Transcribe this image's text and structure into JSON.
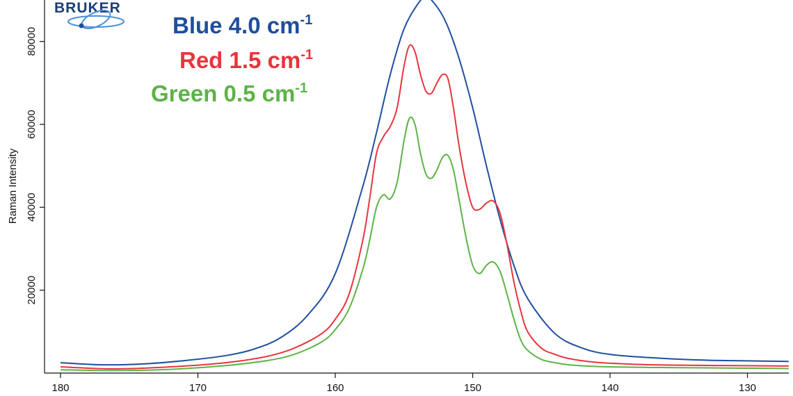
{
  "logo": {
    "text": "BRUKER"
  },
  "chart_data": {
    "type": "line",
    "title": "",
    "xlabel": "",
    "ylabel": "Raman Intensity",
    "xlim": [
      180,
      127
    ],
    "ylim": [
      0,
      90000
    ],
    "x_ticks": [
      180,
      170,
      160,
      150,
      140,
      130
    ],
    "y_ticks": [
      20000,
      40000,
      60000,
      80000
    ],
    "grid": false,
    "legend_position": "top-left",
    "series": [
      {
        "name": "Blue 4.0 cm-1",
        "label_main": "Blue 4.0 cm",
        "label_sup": "-1",
        "color": "#1f4e9e",
        "x": [
          180,
          177,
          174,
          171,
          168,
          166,
          164,
          162,
          160,
          158,
          157,
          156,
          155,
          154,
          153.5,
          153,
          152,
          151,
          150,
          149,
          148,
          147,
          146,
          144,
          142,
          140,
          137,
          134,
          131,
          127
        ],
        "y": [
          2500,
          2000,
          2200,
          3000,
          4200,
          5700,
          8500,
          14000,
          24000,
          45000,
          58000,
          72000,
          83000,
          89000,
          90500,
          90000,
          85000,
          76000,
          64000,
          50000,
          37000,
          26000,
          18000,
          9500,
          6000,
          4500,
          3700,
          3200,
          3000,
          2800
        ]
      },
      {
        "name": "Red 1.5 cm-1",
        "label_main": "Red 1.5 cm",
        "label_sup": "-1",
        "color": "#e8343c",
        "x": [
          180,
          176,
          172,
          168,
          165,
          163,
          161,
          160,
          159,
          158,
          157.5,
          157,
          156.5,
          156,
          155.5,
          155,
          154.6,
          154.2,
          153.8,
          153.4,
          153,
          152.6,
          152.2,
          151.8,
          151.4,
          151,
          150.5,
          150,
          149.5,
          149,
          148.5,
          148,
          147.5,
          147,
          146.5,
          146,
          145,
          144,
          143,
          141,
          138,
          135,
          131,
          127
        ],
        "y": [
          1500,
          1000,
          1500,
          2500,
          4000,
          6000,
          9500,
          13000,
          19000,
          32000,
          42000,
          53000,
          57000,
          59500,
          64000,
          74000,
          79000,
          77500,
          72000,
          68000,
          67500,
          70000,
          72000,
          71000,
          64000,
          55000,
          46000,
          40000,
          39500,
          41000,
          41500,
          38500,
          31000,
          22000,
          15000,
          10000,
          6000,
          4500,
          3500,
          2600,
          2100,
          1900,
          1800,
          1700
        ]
      },
      {
        "name": "Green 0.5 cm-1",
        "label_main": "Green 0.5 cm",
        "label_sup": "-1",
        "color": "#5cb346",
        "x": [
          180,
          176,
          172,
          168,
          165,
          163,
          161,
          160,
          159,
          158,
          157.5,
          157,
          156.5,
          156,
          155.5,
          155,
          154.6,
          154.2,
          153.8,
          153.4,
          153,
          152.6,
          152.2,
          151.8,
          151.4,
          151,
          150.5,
          150,
          149.5,
          149,
          148.5,
          148,
          147.5,
          147,
          146.5,
          146,
          145,
          144,
          143,
          141,
          138,
          135,
          131,
          127
        ],
        "y": [
          800,
          600,
          900,
          1800,
          3000,
          4500,
          7500,
          10500,
          15500,
          25000,
          32000,
          40000,
          43000,
          42000,
          46000,
          56000,
          61500,
          60000,
          53000,
          48000,
          47000,
          49000,
          52000,
          52500,
          49000,
          42000,
          33000,
          26000,
          24000,
          26000,
          26800,
          24500,
          19000,
          13000,
          8000,
          5500,
          3300,
          2500,
          2000,
          1600,
          1400,
          1300,
          1200,
          1100
        ]
      }
    ]
  }
}
